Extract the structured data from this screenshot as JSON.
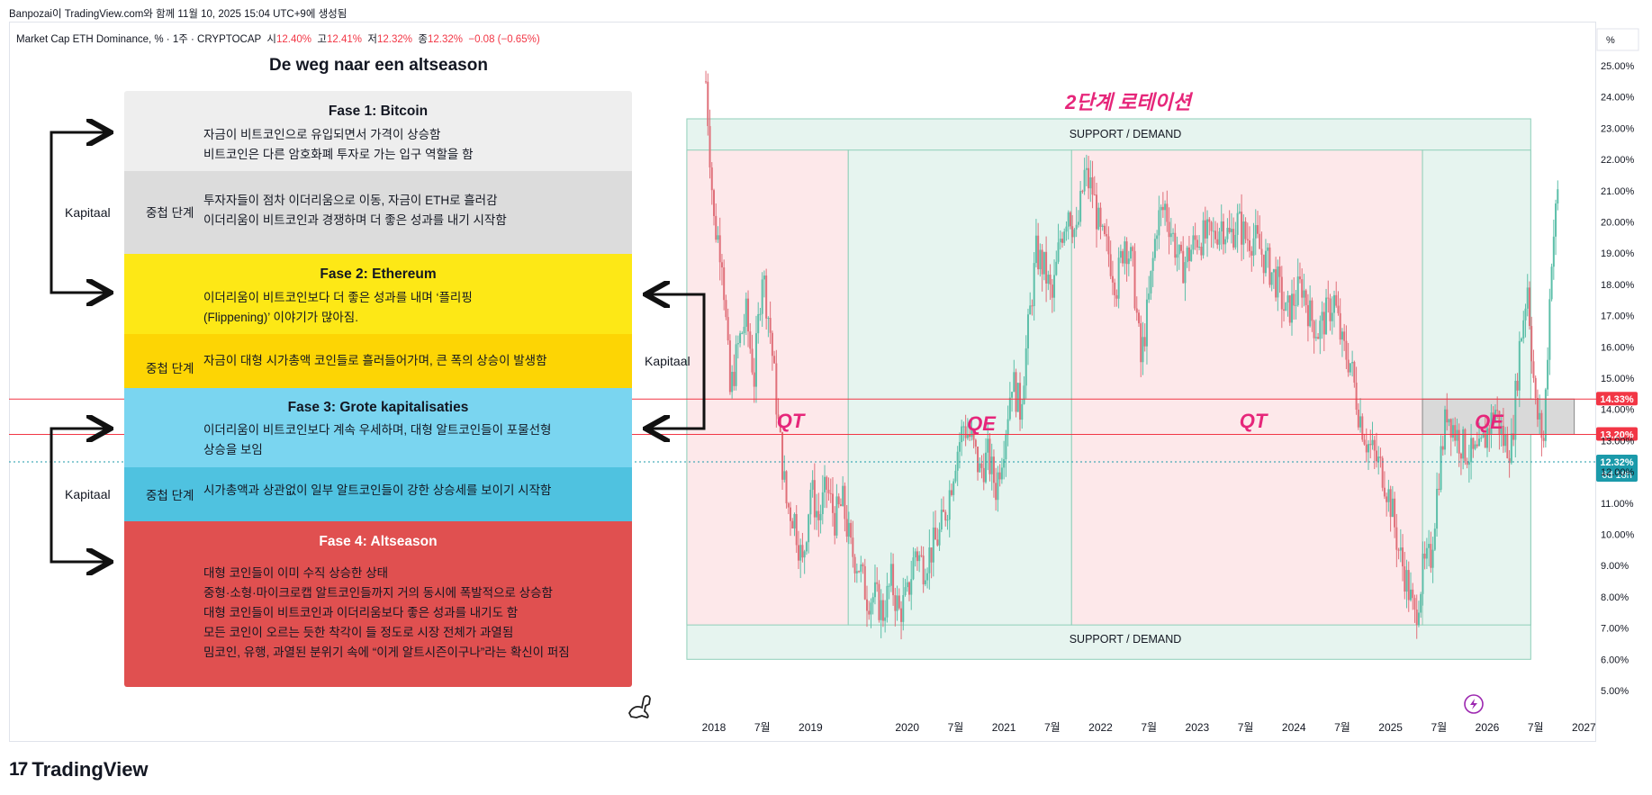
{
  "header": {
    "topline": "Banpozai이 TradingView.com와 함께 11월 10, 2025 15:04 UTC+9에 생성됨",
    "symbol": "Market Cap ETH Dominance, % · 1주 · CRYPTOCAP",
    "o_label": "시",
    "o_value": "12.40%",
    "h_label": "고",
    "h_value": "12.41%",
    "l_label": "저",
    "l_value": "12.32%",
    "c_label": "종",
    "c_value": "12.32%",
    "change": "−0.08 (−0.65%)",
    "unit_button": "%"
  },
  "footer": {
    "brand": "TradingView",
    "mark": "17"
  },
  "infographic": {
    "title": "De weg naar een altseason",
    "phase1_title": "Fase 1: Bitcoin",
    "phase1_l1": "자금이 비트코인으로 유입되면서 가격이 상승함",
    "phase1_l2": "비트코인은 다른 암호화폐 투자로 가는 입구 역할을 함",
    "overlap1_side": "중첩 단계",
    "overlap1_l1": "투자자들이 점차 이더리움으로 이동, 자금이 ETH로 흘러감",
    "overlap1_l2": "이더리움이 비트코인과 경쟁하며 더 좋은 성과를 내기 시작함",
    "phase2_title": "Fase 2: Ethereum",
    "phase2_l1": "이더리움이 비트코인보다 더 좋은 성과를 내며 ‘플리핑",
    "phase2_l2": "(Flippening)’ 이야기가 많아짐.",
    "overlap2_side": "중첩 단계",
    "overlap2_l1": "자금이 대형 시가총액 코인들로 흘러들어가며, 큰 폭의 상승이 발생함",
    "phase3_title": "Fase 3: Grote kapitalisaties",
    "phase3_l1": "이더리움이 비트코인보다 계속 우세하며, 대형 알트코인들이 포물선형",
    "phase3_l2": "상승을 보임",
    "overlap3_side": "중첩 단계",
    "overlap3_l1": "시가총액과 상관없이 일부 알트코인들이 강한 상승세를 보이기 시작함",
    "phase4_title": "Fase 4: Altseason",
    "phase4_l1": "대형 코인들이 이미 수직 상승한 상태",
    "phase4_l2": "중형·소형·마이크로캡 알트코인들까지 거의 동시에 폭발적으로 상승함",
    "phase4_l3": "대형 코인들이 비트코인과 이더리움보다 좋은 성과를 내기도 함",
    "phase4_l4": "모든 코인이 오르는 듯한 착각이 들 정도로 시장 전체가 과열됨",
    "phase4_l5": "밈코인, 유행, 과열된 분위기 속에 “이게 알트시즌이구나”라는 확신이 퍼짐",
    "kapitaal_1": "Kapitaal",
    "kapitaal_2": "Kapitaal",
    "kapitaal_3": "Kapitaal"
  },
  "annotations": {
    "rotation_title": "2단계 로테이션",
    "support_top": "SUPPORT / DEMAND",
    "support_bottom": "SUPPORT / DEMAND",
    "qt1": "QT",
    "qe1": "QE",
    "qt2": "QT",
    "qe2": "QE"
  },
  "chart_data": {
    "type": "candlestick",
    "title": "Market Cap ETH Dominance",
    "timeframe": "1주",
    "exchange": "CRYPTOCAP",
    "ylabel": "%",
    "ylim": [
      4.5,
      26
    ],
    "y_ticks": [
      "25.00%",
      "24.00%",
      "23.00%",
      "22.00%",
      "21.00%",
      "20.00%",
      "19.00%",
      "18.00%",
      "17.00%",
      "16.00%",
      "15.00%",
      "14.00%",
      "13.00%",
      "12.00%",
      "11.00%",
      "10.00%",
      "9.00%",
      "8.00%",
      "7.00%",
      "6.00%",
      "5.00%"
    ],
    "x_ticks": [
      "2018",
      "7월",
      "2019",
      "2020",
      "7월",
      "2021",
      "7월",
      "2022",
      "7월",
      "2023",
      "7월",
      "2024",
      "7월",
      "2025",
      "7월",
      "2026",
      "7월",
      "2027"
    ],
    "price_levels": [
      {
        "label": "14.33%",
        "value": 14.33,
        "color": "#f23645"
      },
      {
        "label": "13.20%",
        "value": 13.2,
        "color": "#f23645"
      },
      {
        "label": "12.32%",
        "sublabel": "6d 18h",
        "value": 12.32,
        "color": "#1b9aaa"
      }
    ],
    "series": [
      {
        "values": [
          [
            "2017-12",
            24.5
          ],
          [
            "2018-01",
            20.0
          ],
          [
            "2018-02",
            19.0
          ],
          [
            "2018-03",
            14.5
          ],
          [
            "2018-04",
            16.0
          ],
          [
            "2018-05",
            17.0
          ],
          [
            "2018-06",
            15.0
          ],
          [
            "2018-07",
            18.5
          ],
          [
            "2018-08",
            16.5
          ],
          [
            "2018-09",
            13.5
          ],
          [
            "2018-10",
            11.0
          ],
          [
            "2018-11",
            10.5
          ],
          [
            "2018-12",
            9.0
          ],
          [
            "2019-01",
            11.5
          ],
          [
            "2019-02",
            10.5
          ],
          [
            "2019-03",
            11.5
          ],
          [
            "2019-04",
            10.5
          ],
          [
            "2019-05",
            11.0
          ],
          [
            "2019-06",
            9.5
          ],
          [
            "2019-07",
            9.0
          ],
          [
            "2019-08",
            8.0
          ],
          [
            "2019-09",
            8.0
          ],
          [
            "2019-10",
            7.5
          ],
          [
            "2019-11",
            8.5
          ],
          [
            "2019-12",
            7.5
          ],
          [
            "2020-01",
            8.0
          ],
          [
            "2020-02",
            9.5
          ],
          [
            "2020-03",
            9.0
          ],
          [
            "2020-04",
            9.5
          ],
          [
            "2020-05",
            10.0
          ],
          [
            "2020-06",
            11.0
          ],
          [
            "2020-07",
            12.5
          ],
          [
            "2020-08",
            13.5
          ],
          [
            "2020-09",
            13.0
          ],
          [
            "2020-10",
            12.0
          ],
          [
            "2020-11",
            12.5
          ],
          [
            "2020-12",
            11.5
          ],
          [
            "2021-01",
            13.0
          ],
          [
            "2021-02",
            15.0
          ],
          [
            "2021-03",
            14.0
          ],
          [
            "2021-04",
            16.5
          ],
          [
            "2021-05",
            19.0
          ],
          [
            "2021-06",
            18.5
          ],
          [
            "2021-07",
            17.5
          ],
          [
            "2021-08",
            19.5
          ],
          [
            "2021-09",
            20.5
          ],
          [
            "2021-10",
            19.5
          ],
          [
            "2021-11",
            21.5
          ],
          [
            "2021-12",
            21.0
          ],
          [
            "2022-01",
            19.5
          ],
          [
            "2022-02",
            19.0
          ],
          [
            "2022-03",
            18.0
          ],
          [
            "2022-04",
            19.5
          ],
          [
            "2022-05",
            18.5
          ],
          [
            "2022-06",
            15.5
          ],
          [
            "2022-07",
            17.5
          ],
          [
            "2022-08",
            20.0
          ],
          [
            "2022-09",
            20.5
          ],
          [
            "2022-10",
            19.5
          ],
          [
            "2022-11",
            18.5
          ],
          [
            "2022-12",
            19.0
          ],
          [
            "2023-01",
            19.5
          ],
          [
            "2023-02",
            19.5
          ],
          [
            "2023-03",
            19.5
          ],
          [
            "2023-04",
            20.0
          ],
          [
            "2023-05",
            19.5
          ],
          [
            "2023-06",
            20.0
          ],
          [
            "2023-07",
            19.5
          ],
          [
            "2023-08",
            19.5
          ],
          [
            "2023-09",
            19.0
          ],
          [
            "2023-10",
            18.5
          ],
          [
            "2023-11",
            18.0
          ],
          [
            "2023-12",
            17.0
          ],
          [
            "2024-01",
            17.5
          ],
          [
            "2024-02",
            18.0
          ],
          [
            "2024-03",
            17.0
          ],
          [
            "2024-04",
            16.5
          ],
          [
            "2024-05",
            17.0
          ],
          [
            "2024-06",
            17.5
          ],
          [
            "2024-07",
            16.0
          ],
          [
            "2024-08",
            15.5
          ],
          [
            "2024-09",
            14.0
          ],
          [
            "2024-10",
            13.0
          ],
          [
            "2024-11",
            12.5
          ],
          [
            "2024-12",
            12.0
          ],
          [
            "2025-01",
            11.0
          ],
          [
            "2025-02",
            9.5
          ],
          [
            "2025-03",
            8.5
          ],
          [
            "2025-04",
            7.3
          ],
          [
            "2025-05",
            8.8
          ],
          [
            "2025-06",
            9.3
          ],
          [
            "2025-07",
            12.0
          ],
          [
            "2025-08",
            14.0
          ],
          [
            "2025-09",
            13.3
          ],
          [
            "2025-10",
            12.8
          ],
          [
            "2025-11",
            12.5
          ],
          [
            "2025-12",
            12.5
          ],
          [
            "2026-01",
            13.3
          ],
          [
            "2026-02",
            14.0
          ],
          [
            "2026-03",
            13.0
          ],
          [
            "2026-04",
            12.8
          ],
          [
            "2026-05",
            16.0
          ],
          [
            "2026-06",
            18.0
          ],
          [
            "2026-07",
            14.0
          ],
          [
            "2026-08",
            13.0
          ],
          [
            "2026-09",
            19.0
          ],
          [
            "2026-10",
            21.5
          ]
        ]
      }
    ]
  },
  "colors": {
    "qt_zone": "#fde8ea",
    "qe_zone": "#e6f4ef",
    "up": "#5cbfa9",
    "down": "#e0707a",
    "accent_pink": "#e6267a",
    "phase1": "#eeeeee",
    "overlap1": "#dcdcdc",
    "phase2": "#fde816",
    "overlap2": "#fdd504",
    "phase3": "#7ad5f0",
    "overlap3": "#4fc2e0",
    "phase4": "#e05050"
  }
}
